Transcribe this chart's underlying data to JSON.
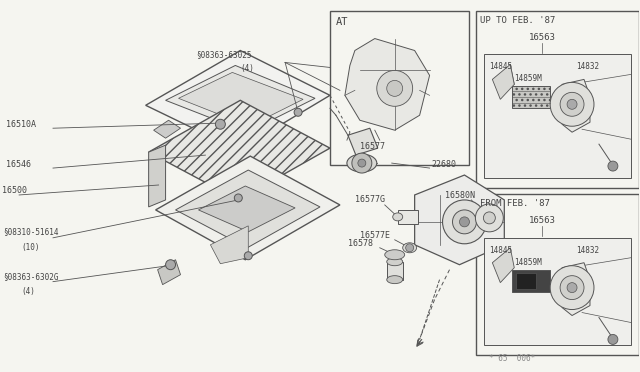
{
  "bg": "#f5f5f0",
  "lc": "#555555",
  "tc": "#444444",
  "fig_w": 6.4,
  "fig_h": 3.72,
  "dpi": 100,
  "footnote": "* 65  006*",
  "at_label": "AT",
  "at_part": "16577",
  "up87_label": "UP TO FEB. '87",
  "up87_16563": "16563",
  "from87_label": "FROM FEB. '87",
  "from87_16563": "16563",
  "parts_14845": "14845",
  "parts_14832": "14832",
  "parts_14859M": "14859M",
  "label_16500": "16500",
  "label_16510A": "16510A",
  "label_16546": "16546",
  "label_s1": "§08363-63025",
  "label_s1b": "(4)",
  "label_22680": "22680",
  "label_s2": "§08310-51614",
  "label_s2b": "(10)",
  "label_s3": "§08363-6302G",
  "label_s3b": "(4)",
  "label_16577G": "16577G",
  "label_16577E": "16577E",
  "label_16578": "16578",
  "label_16580N": "16580N"
}
